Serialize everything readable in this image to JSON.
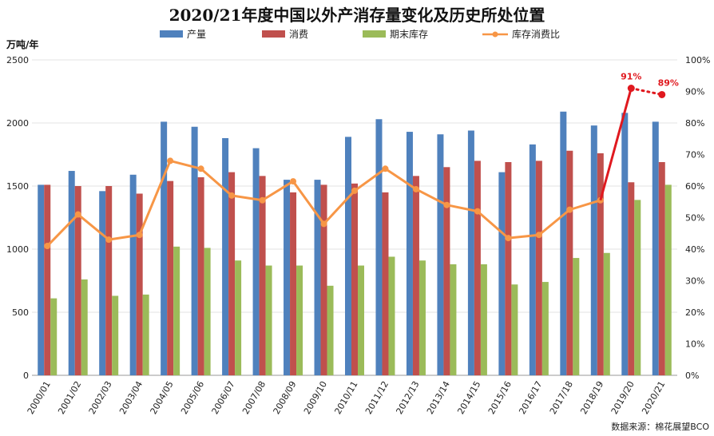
{
  "chart_data": {
    "type": "bar",
    "title": "2020/21年度中国以外产消存量变化及历史所处位置",
    "y_left_unit": "万吨/年",
    "ylim_left": [
      0,
      2500
    ],
    "yticks_left": [
      "0",
      "500",
      "1000",
      "1500",
      "2000",
      "2500"
    ],
    "ylim_right": [
      0,
      100
    ],
    "yticks_right": [
      "0%",
      "10%",
      "20%",
      "30%",
      "40%",
      "50%",
      "60%",
      "70%",
      "80%",
      "90%",
      "100%"
    ],
    "categories": [
      "2000/01",
      "2001/02",
      "2002/03",
      "2003/04",
      "2004/05",
      "2005/06",
      "2006/07",
      "2007/08",
      "2008/09",
      "2009/10",
      "2010/11",
      "2011/12",
      "2012/13",
      "2013/14",
      "2014/15",
      "2015/16",
      "2016/17",
      "2017/18",
      "2018/19",
      "2019/20",
      "2020/21"
    ],
    "series": [
      {
        "name": "产量",
        "type": "bar",
        "axis": "left",
        "color": "#4f81bd",
        "values": [
          1510,
          1620,
          1460,
          1590,
          2010,
          1970,
          1880,
          1800,
          1550,
          1550,
          1890,
          2030,
          1930,
          1910,
          1940,
          1610,
          1830,
          2090,
          1980,
          2080,
          2010
        ]
      },
      {
        "name": "消费",
        "type": "bar",
        "axis": "left",
        "color": "#c0504d",
        "values": [
          1510,
          1500,
          1500,
          1440,
          1540,
          1570,
          1610,
          1580,
          1450,
          1510,
          1520,
          1450,
          1580,
          1650,
          1700,
          1690,
          1700,
          1780,
          1760,
          1530,
          1690
        ]
      },
      {
        "name": "期末库存",
        "type": "bar",
        "axis": "left",
        "color": "#9bbb59",
        "values": [
          610,
          760,
          630,
          640,
          1020,
          1010,
          910,
          870,
          870,
          710,
          870,
          940,
          910,
          880,
          880,
          720,
          740,
          930,
          970,
          1390,
          1510
        ]
      },
      {
        "name": "库存消费比",
        "type": "line",
        "axis": "right",
        "color": "#f79646",
        "values": [
          41,
          51,
          43,
          44.5,
          68,
          65.5,
          57,
          55.5,
          61.5,
          48,
          58.5,
          65.5,
          59,
          54,
          52,
          43.5,
          44.5,
          52.5,
          55.5,
          null,
          null
        ]
      },
      {
        "name": "库存消费比 (2019/20–2020/21)",
        "type": "line-highlight",
        "axis": "right",
        "color": "#e0191f",
        "points": [
          {
            "category": "2018/19",
            "value": 55.5
          },
          {
            "category": "2019/20",
            "value": 91
          },
          {
            "category": "2020/21",
            "value": 89
          }
        ],
        "labels": [
          "91%",
          "89%"
        ]
      }
    ],
    "legend": [
      "产量",
      "消费",
      "期末库存",
      "库存消费比"
    ],
    "legend_position": "top",
    "grid": "horizontal",
    "source": "数据来源：棉花展望BCO"
  }
}
